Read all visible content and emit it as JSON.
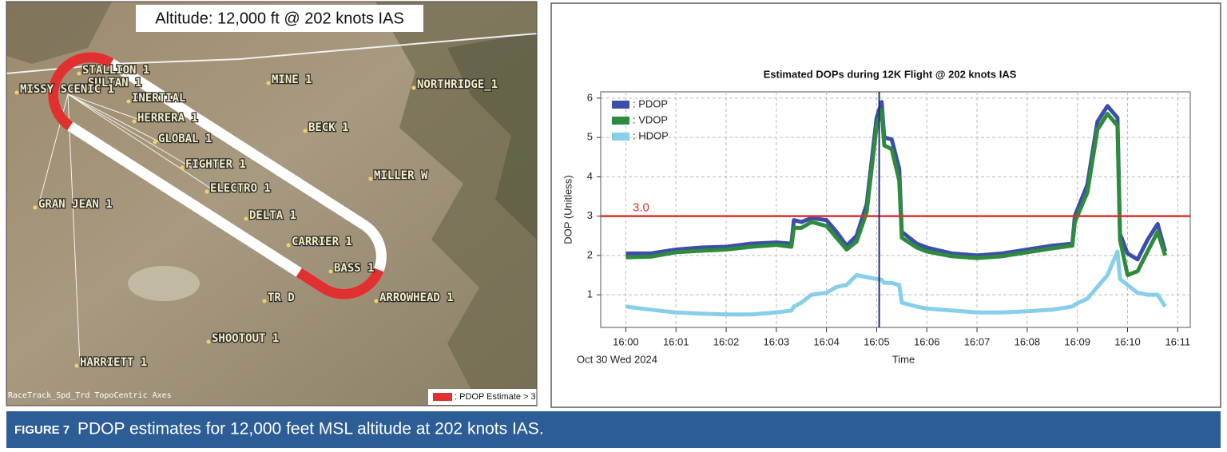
{
  "map": {
    "title": "Altitude: 12,000 ft @ 202 knots IAS",
    "labels": [
      "STALLION 1",
      "SULTAN 1",
      "MISSY SCENIC 1",
      "INERTIAL",
      "MINE 1",
      "NORTHRIDGE_1",
      "HERRERA 1",
      "BECK 1",
      "GLOBAL 1",
      "FIGHTER 1",
      "MILLER W",
      "ELECTRO 1",
      "GRAN JEAN 1",
      "DELTA 1",
      "CARRIER 1",
      "BASS 1",
      "ARROWHEAD 1",
      "TR D",
      "SHOOTOUT 1",
      "HARRIETT 1"
    ],
    "footer": "RaceTrack_Spd_Trd TopoCentric Axes",
    "legend": ": PDOP Estimate > 3"
  },
  "chart_data": {
    "type": "line",
    "title": "Estimated DOPs during 12K Flight @ 202 knots IAS",
    "x_label": "Time",
    "date_label": "Oct 30 Wed 2024",
    "y_label": "DOP  (Unitless)",
    "x": [
      960,
      960.5,
      961,
      961.5,
      962,
      962.5,
      963,
      963.3,
      963.35,
      963.5,
      963.7,
      964,
      964.2,
      964.4,
      964.6,
      964.8,
      965,
      965.1,
      965.15,
      965.3,
      965.45,
      965.5,
      965.8,
      966,
      966.5,
      967,
      967.5,
      968,
      968.5,
      968.9,
      968.95,
      969.2,
      969.4,
      969.6,
      969.8,
      969.85,
      970,
      970.2,
      970.4,
      970.6,
      970.75
    ],
    "series": [
      {
        "name": ": PDOP",
        "color": "#3b4ea8",
        "values": [
          2.05,
          2.05,
          2.15,
          2.2,
          2.22,
          2.3,
          2.33,
          2.3,
          2.9,
          2.85,
          2.95,
          2.9,
          2.6,
          2.25,
          2.5,
          3.3,
          5.5,
          5.9,
          5.0,
          4.95,
          4.2,
          2.6,
          2.3,
          2.2,
          2.05,
          2.0,
          2.05,
          2.15,
          2.25,
          2.3,
          3.0,
          3.8,
          5.4,
          5.8,
          5.5,
          2.55,
          2.05,
          1.9,
          2.4,
          2.8,
          2.1
        ]
      },
      {
        "name": ": VDOP",
        "color": "#2e8b3e",
        "values": [
          1.95,
          1.97,
          2.08,
          2.12,
          2.15,
          2.22,
          2.27,
          2.22,
          2.7,
          2.7,
          2.85,
          2.75,
          2.45,
          2.15,
          2.35,
          3.1,
          5.3,
          5.7,
          4.8,
          4.7,
          3.9,
          2.45,
          2.2,
          2.1,
          1.98,
          1.93,
          1.98,
          2.08,
          2.18,
          2.25,
          2.85,
          3.6,
          5.2,
          5.6,
          5.3,
          2.4,
          1.5,
          1.6,
          2.1,
          2.6,
          2.0
        ]
      },
      {
        "name": ": HDOP",
        "color": "#87ceeb",
        "values": [
          0.7,
          0.62,
          0.55,
          0.52,
          0.5,
          0.5,
          0.55,
          0.6,
          0.7,
          0.8,
          1.0,
          1.05,
          1.2,
          1.25,
          1.5,
          1.45,
          1.4,
          1.38,
          1.3,
          1.3,
          1.25,
          0.8,
          0.7,
          0.65,
          0.6,
          0.55,
          0.55,
          0.58,
          0.62,
          0.7,
          0.75,
          0.9,
          1.2,
          1.5,
          2.1,
          1.4,
          1.25,
          1.05,
          1.0,
          1.0,
          0.7
        ]
      }
    ],
    "threshold": {
      "value": 3,
      "label": "3.0"
    },
    "threshold_color": "#e03030",
    "marker_x": 965.05,
    "marker_color": "#1f2f7a",
    "xlim": [
      959.5,
      971.25
    ],
    "xticks": [
      {
        "value": 960,
        "label": "16:00"
      },
      {
        "value": 961,
        "label": "16:01"
      },
      {
        "value": 962,
        "label": "16:02"
      },
      {
        "value": 963,
        "label": "16:03"
      },
      {
        "value": 964,
        "label": "16:04"
      },
      {
        "value": 965,
        "label": "16:05"
      },
      {
        "value": 966,
        "label": "16:06"
      },
      {
        "value": 967,
        "label": "16:07"
      },
      {
        "value": 968,
        "label": "16:08"
      },
      {
        "value": 969,
        "label": "16:09"
      },
      {
        "value": 970,
        "label": "16:10"
      },
      {
        "value": 971,
        "label": "16:11"
      }
    ],
    "ylim": [
      0.17,
      6.16
    ],
    "yticks": [
      1,
      2,
      3,
      4,
      5,
      6
    ],
    "grid": true
  },
  "caption": {
    "label": "FIGURE 7",
    "text": "PDOP estimates for 12,000 feet MSL altitude at 202 knots IAS."
  }
}
